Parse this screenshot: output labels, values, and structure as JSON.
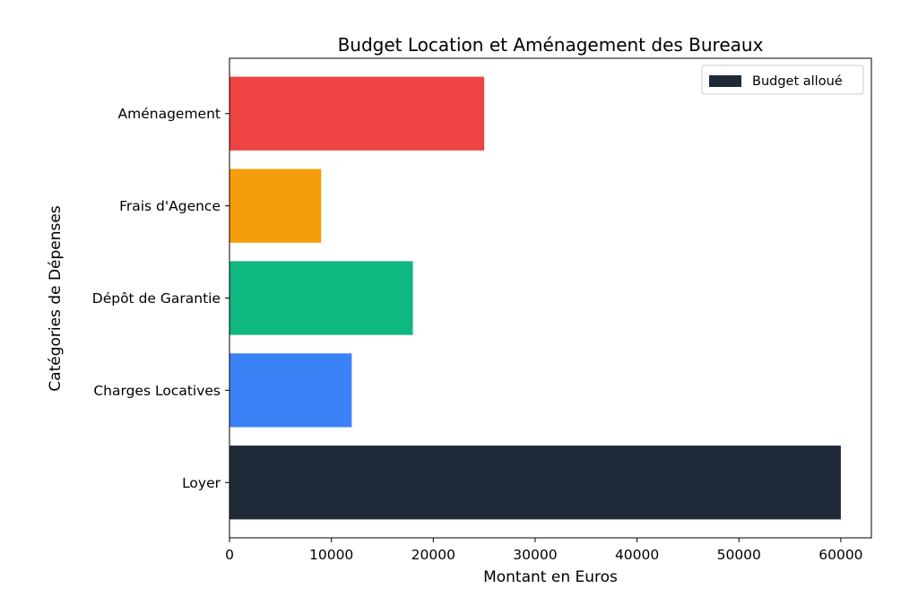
{
  "chart_data": {
    "type": "bar",
    "orientation": "horizontal",
    "title": "Budget Location et Aménagement des Bureaux",
    "xlabel": "Montant en Euros",
    "ylabel": "Catégories de Dépenses",
    "categories": [
      "Loyer",
      "Charges Locatives",
      "Dépôt de Garantie",
      "Frais d'Agence",
      "Aménagement"
    ],
    "values": [
      60000,
      12000,
      18000,
      9000,
      25000
    ],
    "colors": [
      "#1f2937",
      "#3b82f6",
      "#10b981",
      "#f59e0b",
      "#ef4444"
    ],
    "xlim": [
      0,
      63000
    ],
    "xticks": [
      0,
      10000,
      20000,
      30000,
      40000,
      50000,
      60000
    ],
    "xtick_labels": [
      "0",
      "10000",
      "20000",
      "30000",
      "40000",
      "50000",
      "60000"
    ],
    "grid": false,
    "legend": {
      "position": "top-right",
      "entries": [
        {
          "label": "Budget alloué",
          "color": "#1f2937"
        }
      ]
    }
  }
}
